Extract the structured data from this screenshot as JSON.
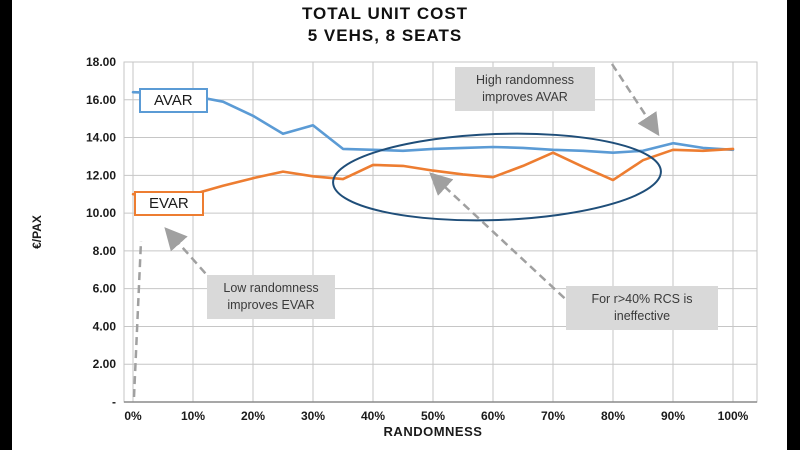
{
  "window": {
    "background": "#ffffff"
  },
  "colors": {
    "avar": "#5B9BD5",
    "evar": "#ED7D31",
    "gridline": "#C6C6C6",
    "axis": "#8a8a8a",
    "arrow": "#A0A0A0",
    "ellipse": "#1F4E79",
    "annotation_bg": "#D9D9D9",
    "tick_text": "#1a1a1a"
  },
  "chart_data": {
    "type": "line",
    "title": "TOTAL UNIT COST",
    "subtitle": "5 VEHS, 8 SEATS",
    "xlabel": "RANDOMNESS",
    "ylabel": "€/PAX",
    "grid": true,
    "legend_position": "inline-labels",
    "ylim": [
      0,
      18
    ],
    "x_tick_labels": [
      "0%",
      "10%",
      "20%",
      "30%",
      "40%",
      "50%",
      "60%",
      "70%",
      "80%",
      "90%",
      "100%"
    ],
    "x_tick_values": [
      0,
      10,
      20,
      30,
      40,
      50,
      60,
      70,
      80,
      90,
      100
    ],
    "y_tick_labels": [
      "18.00",
      "16.00",
      "14.00",
      "12.00",
      "10.00",
      "8.00",
      "6.00",
      "4.00",
      "2.00",
      "-"
    ],
    "y_tick_values": [
      18,
      16,
      14,
      12,
      10,
      8,
      6,
      4,
      2,
      0
    ],
    "x": [
      0,
      5,
      10,
      15,
      20,
      25,
      30,
      35,
      40,
      45,
      50,
      55,
      60,
      65,
      70,
      75,
      80,
      85,
      90,
      95,
      100
    ],
    "series": [
      {
        "name": "AVAR",
        "color": "#5B9BD5",
        "values": [
          16.4,
          16.35,
          16.2,
          15.9,
          15.15,
          14.2,
          14.65,
          13.4,
          13.35,
          13.3,
          13.4,
          13.45,
          13.5,
          13.45,
          13.35,
          13.3,
          13.2,
          13.3,
          13.7,
          13.45,
          13.35
        ]
      },
      {
        "name": "EVAR",
        "color": "#ED7D31",
        "values": [
          11.0,
          10.95,
          11.0,
          11.45,
          11.85,
          12.2,
          11.95,
          11.8,
          12.55,
          12.5,
          12.25,
          12.05,
          11.9,
          12.5,
          13.2,
          12.45,
          11.75,
          12.8,
          13.35,
          13.3,
          13.4
        ]
      }
    ],
    "annotations": [
      {
        "id": "high-randomness",
        "text": "High randomness improves AVAR"
      },
      {
        "id": "low-randomness",
        "text": "Low randomness improves EVAR"
      },
      {
        "id": "rcs-ineffective",
        "text": "For r>40% RCS is ineffective"
      }
    ]
  }
}
